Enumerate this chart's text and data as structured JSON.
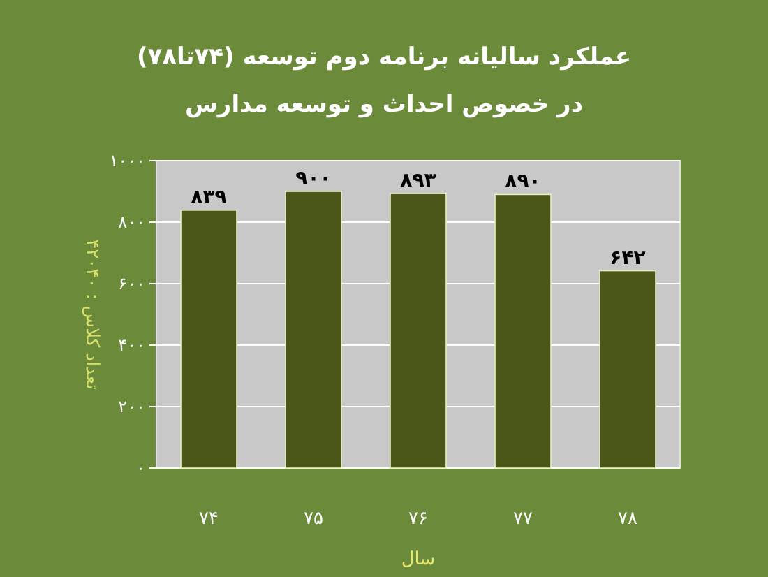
{
  "chart_data": {
    "type": "bar",
    "title": "عملکرد سالیانه برنامه دوم توسعه (۷۴تا۷۸)",
    "subtitle": "در خصوص احداث و توسعه مدارس",
    "xlabel": "سال",
    "ylabel": "تعداد کلاس : ۴۲۰۴۰",
    "categories": [
      "۷۴",
      "۷۵",
      "۷۶",
      "۷۷",
      "۷۸"
    ],
    "values": [
      839,
      900,
      893,
      890,
      642
    ],
    "value_labels": [
      "۸۳۹",
      "۹۰۰",
      "۸۹۳",
      "۸۹۰",
      "۶۴۲"
    ],
    "color": "#4b5619",
    "ylim": [
      0,
      1000
    ],
    "yticks": [
      {
        "value": 0,
        "label": "۰"
      },
      {
        "value": 200,
        "label": "۲۰۰"
      },
      {
        "value": 400,
        "label": "۴۰۰"
      },
      {
        "value": 600,
        "label": "۶۰۰"
      },
      {
        "value": 800,
        "label": "۸۰۰"
      },
      {
        "value": 1000,
        "label": "۱۰۰۰"
      }
    ],
    "grid": "y"
  }
}
